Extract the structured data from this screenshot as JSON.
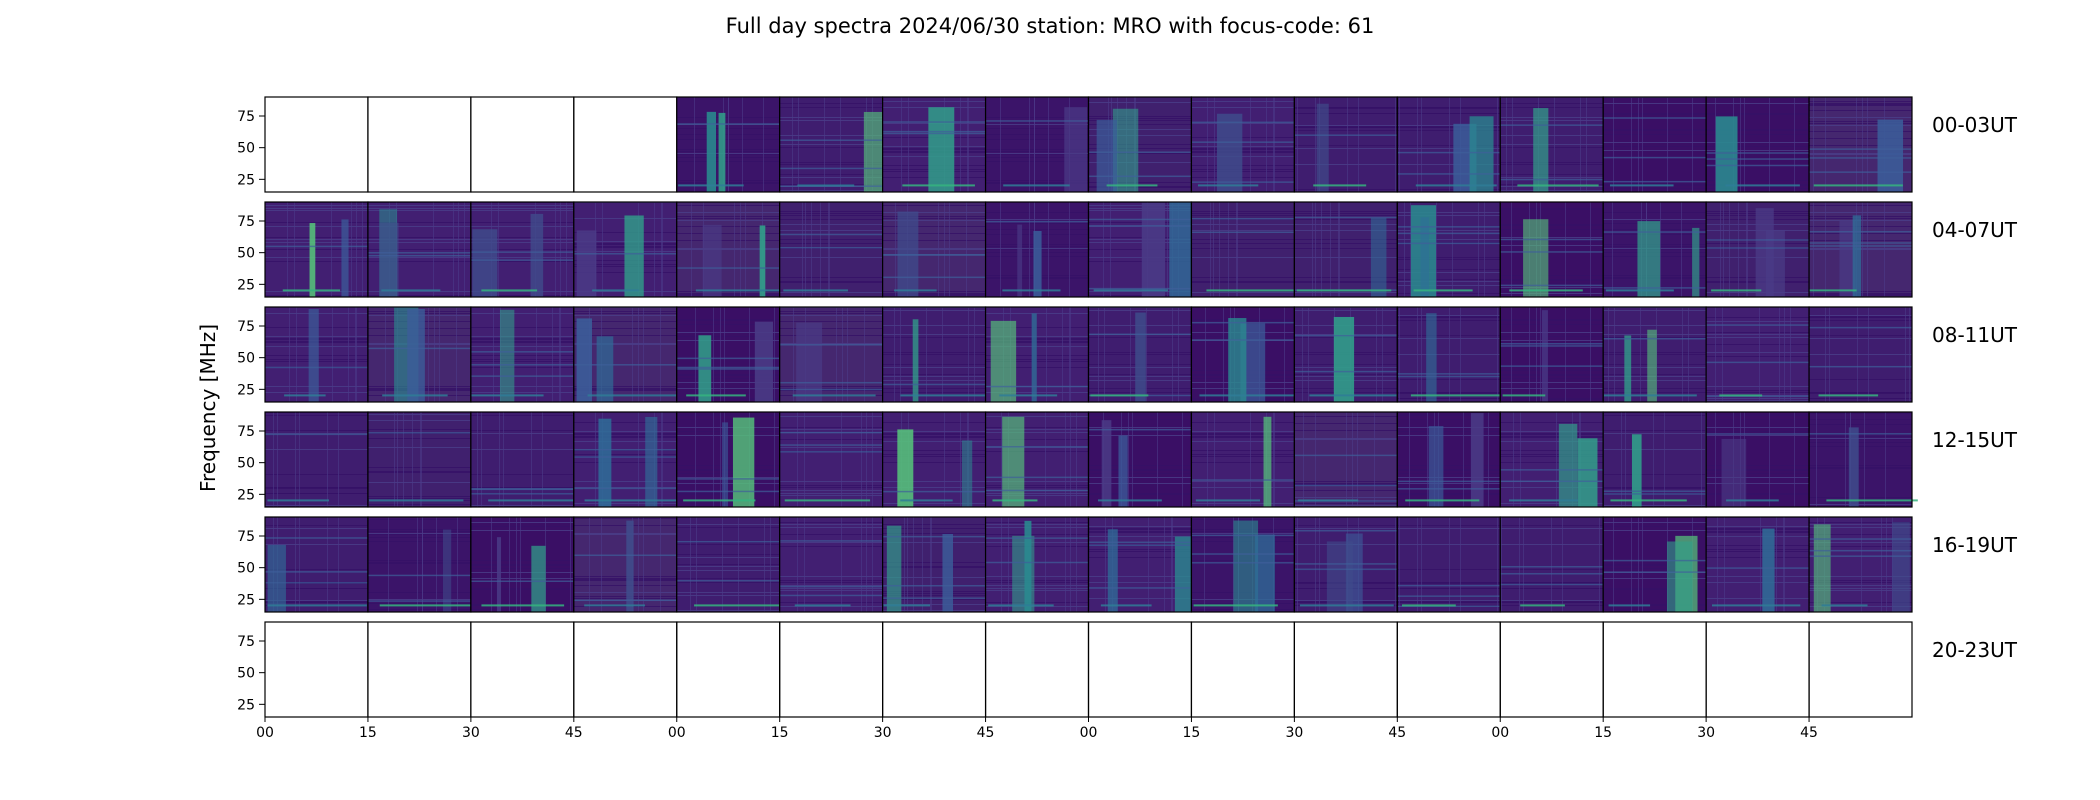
{
  "chart_data": {
    "type": "heatmap",
    "title": "Full day spectra 2024/06/30 station: MRO with focus-code: 61",
    "ylabel": "Frequency [MHz]",
    "xlabel": "",
    "ylim": [
      15,
      90
    ],
    "yticks": [
      25,
      50,
      75
    ],
    "xtick_labels": [
      "00",
      "15",
      "30",
      "45",
      "00",
      "15",
      "30",
      "45",
      "00",
      "15",
      "30",
      "45",
      "00",
      "15",
      "30",
      "45"
    ],
    "colormap": "viridis",
    "row_labels": [
      "00-03UT",
      "04-07UT",
      "08-11UT",
      "12-15UT",
      "16-19UT",
      "20-23UT"
    ],
    "panels_per_row": 16,
    "panel_minutes": 15,
    "rows": [
      {
        "label": "00-03UT",
        "available": [
          0,
          0,
          0,
          0,
          1,
          1,
          1,
          1,
          1,
          1,
          1,
          1,
          1,
          1,
          1,
          1
        ]
      },
      {
        "label": "04-07UT",
        "available": [
          1,
          1,
          1,
          1,
          1,
          1,
          1,
          1,
          1,
          1,
          1,
          1,
          1,
          1,
          1,
          1
        ]
      },
      {
        "label": "08-11UT",
        "available": [
          1,
          1,
          1,
          1,
          1,
          1,
          1,
          1,
          1,
          1,
          1,
          1,
          1,
          1,
          1,
          1
        ]
      },
      {
        "label": "12-15UT",
        "available": [
          1,
          1,
          1,
          1,
          1,
          1,
          1,
          1,
          1,
          1,
          1,
          1,
          1,
          1,
          1,
          1
        ]
      },
      {
        "label": "16-19UT",
        "available": [
          1,
          1,
          1,
          1,
          1,
          1,
          1,
          1,
          1,
          1,
          1,
          1,
          1,
          1,
          1,
          1
        ]
      },
      {
        "label": "20-23UT",
        "available": [
          0,
          0,
          0,
          0,
          0,
          0,
          0,
          0,
          0,
          0,
          0,
          0,
          0,
          0,
          0,
          0
        ]
      }
    ]
  }
}
